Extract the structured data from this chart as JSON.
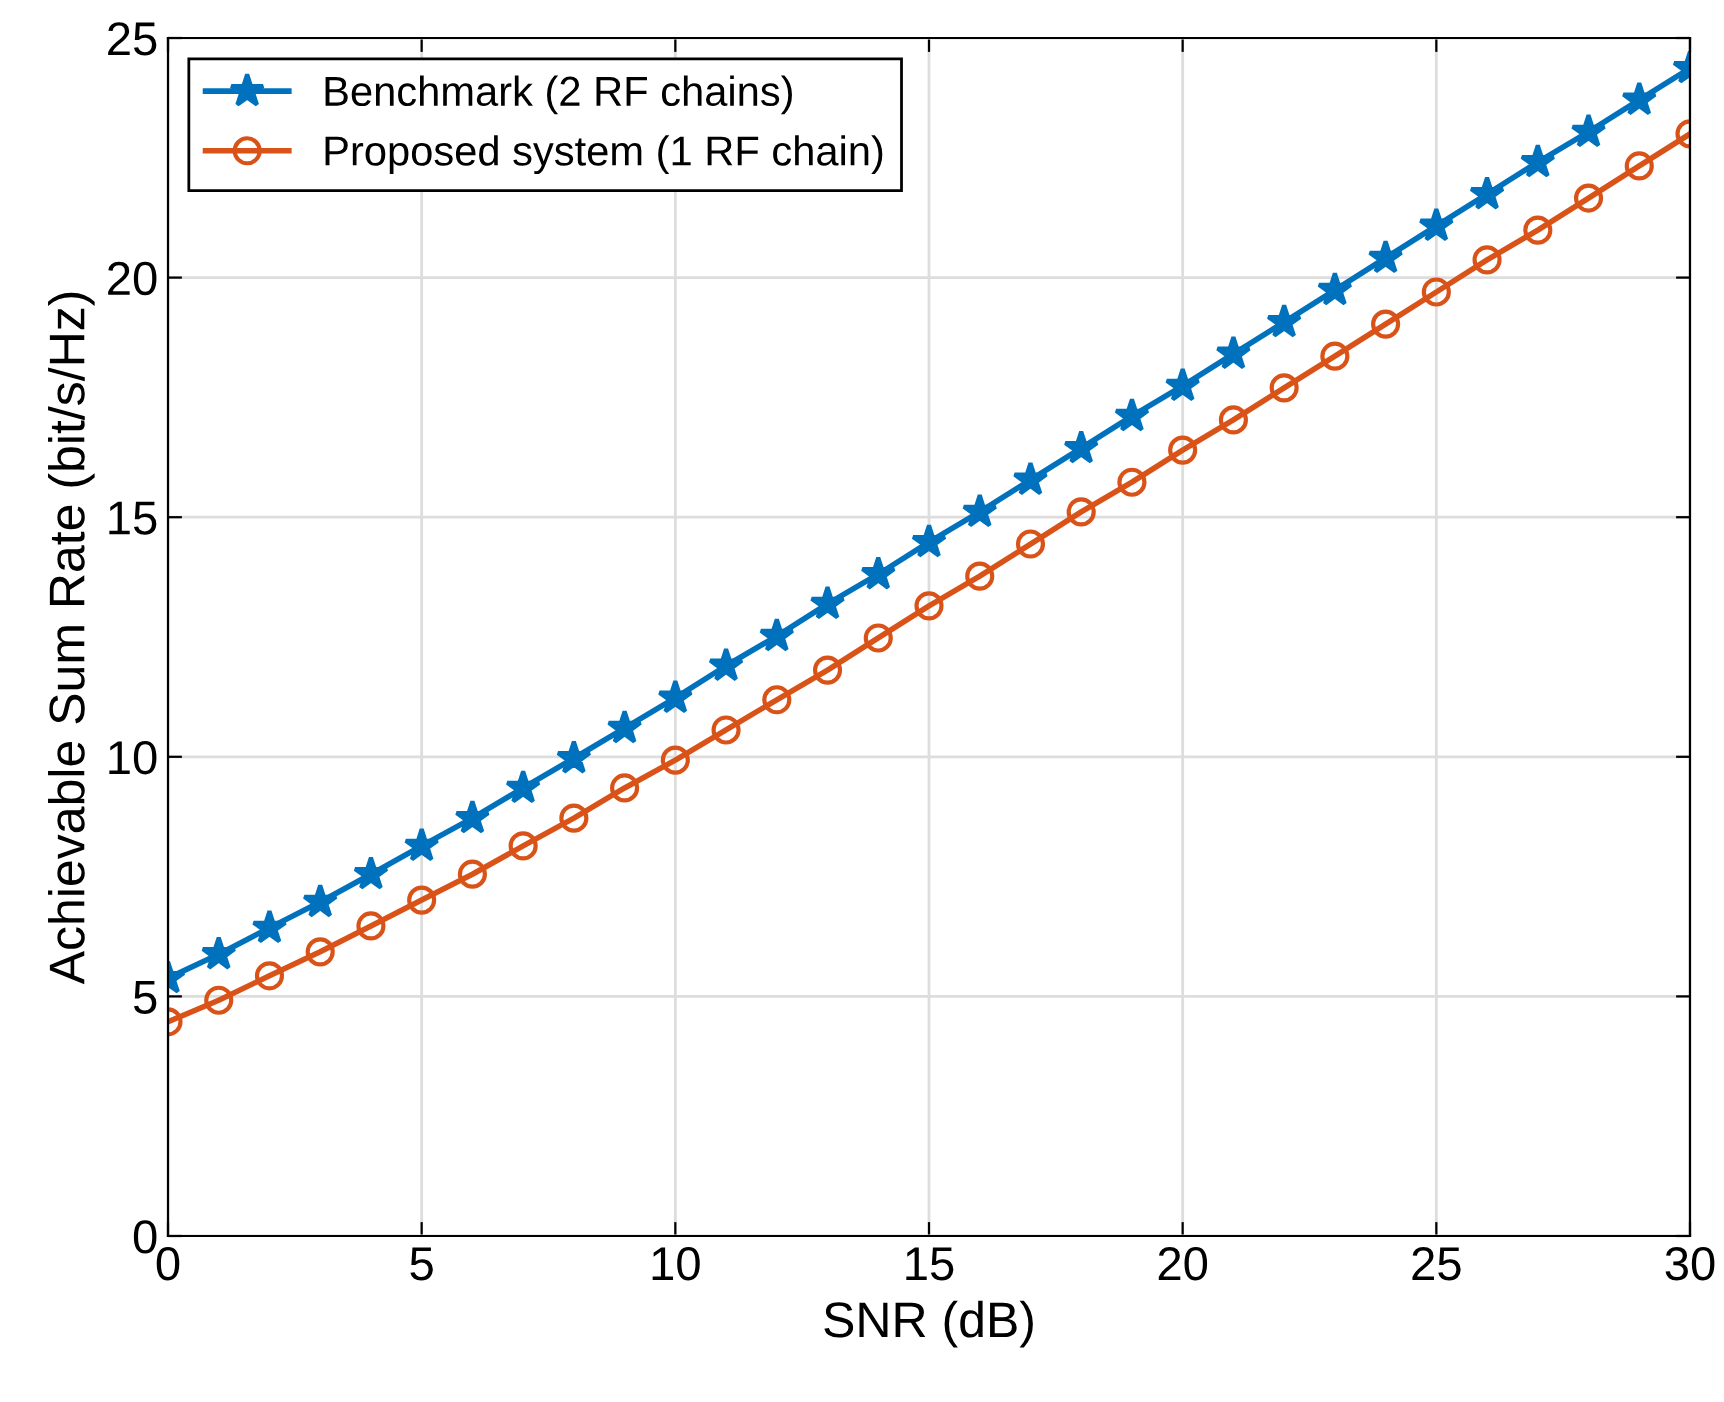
{
  "chart_data": {
    "type": "line",
    "xlabel": "SNR (dB)",
    "ylabel": "Achievable Sum Rate (bit/s/Hz)",
    "x": [
      0,
      1,
      2,
      3,
      4,
      5,
      6,
      7,
      8,
      9,
      10,
      11,
      12,
      13,
      14,
      15,
      16,
      17,
      18,
      19,
      20,
      21,
      22,
      23,
      24,
      25,
      26,
      27,
      28,
      29,
      30
    ],
    "series": [
      {
        "name": "Benchmark (2 RF chains)",
        "color": "#0072bd",
        "marker": "star",
        "values": [
          5.38,
          5.88,
          6.43,
          6.97,
          7.55,
          8.14,
          8.72,
          9.35,
          9.97,
          10.6,
          11.23,
          11.9,
          12.52,
          13.19,
          13.81,
          14.48,
          15.11,
          15.78,
          16.44,
          17.11,
          17.74,
          18.41,
          19.07,
          19.74,
          20.41,
          21.08,
          21.74,
          22.41,
          23.04,
          23.71,
          24.37
        ]
      },
      {
        "name": "Proposed system (1 RF chain)",
        "color": "#d95319",
        "marker": "circle",
        "values": [
          4.47,
          4.92,
          5.43,
          5.93,
          6.47,
          7.01,
          7.55,
          8.14,
          8.72,
          9.35,
          9.93,
          10.56,
          11.19,
          11.81,
          12.48,
          13.15,
          13.77,
          14.44,
          15.11,
          15.73,
          16.4,
          17.03,
          17.7,
          18.36,
          19.03,
          19.7,
          20.37,
          20.99,
          21.66,
          22.33,
          23.0
        ]
      }
    ],
    "xlim": [
      0,
      30
    ],
    "xticks": [
      0,
      5,
      10,
      15,
      20,
      25,
      30
    ],
    "ylim": [
      0,
      25
    ],
    "yticks": [
      0,
      5,
      10,
      15,
      20,
      25
    ],
    "grid": true,
    "legend": "top left",
    "line_style": "solid"
  }
}
